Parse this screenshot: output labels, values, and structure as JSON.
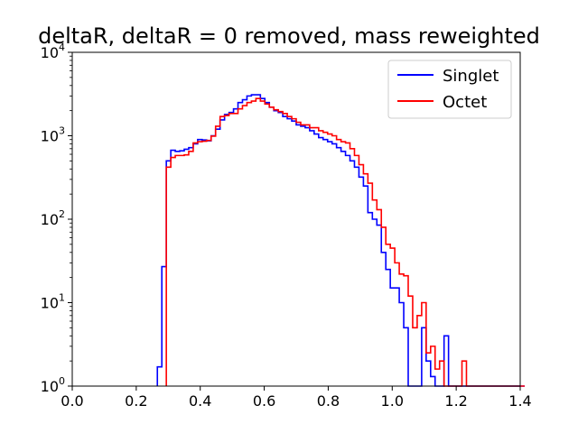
{
  "chart_data": {
    "type": "line",
    "title": "deltaR, deltaR = 0 removed, mass reweighted",
    "xlabel": "",
    "ylabel": "",
    "xlim": [
      0.0,
      1.4
    ],
    "ylim": [
      1,
      10000
    ],
    "yscale": "log",
    "grid": false,
    "legend_position": "top-right",
    "x_ticks": [
      "0.0",
      "0.2",
      "0.4",
      "0.6",
      "0.8",
      "1.0",
      "1.2",
      "1.4"
    ],
    "x_tick_values": [
      0.0,
      0.2,
      0.4,
      0.6,
      0.8,
      1.0,
      1.2,
      1.4
    ],
    "y_ticks": [
      {
        "value": 1,
        "base": "10",
        "exp": "0"
      },
      {
        "value": 10,
        "base": "10",
        "exp": "1"
      },
      {
        "value": 100,
        "base": "10",
        "exp": "2"
      },
      {
        "value": 1000,
        "base": "10",
        "exp": "3"
      },
      {
        "value": 10000,
        "base": "10",
        "exp": "4"
      }
    ],
    "bin_edges_start": 0.266,
    "bin_width": 0.014,
    "series": [
      {
        "name": "Singlet",
        "color": "#0000ff",
        "values": [
          1.7,
          27,
          500,
          670,
          650,
          660,
          690,
          720,
          800,
          900,
          890,
          870,
          1000,
          1200,
          1550,
          1800,
          1900,
          2100,
          2500,
          2700,
          3000,
          3100,
          3100,
          2800,
          2500,
          2200,
          2000,
          1900,
          1700,
          1600,
          1500,
          1350,
          1300,
          1250,
          1150,
          1050,
          950,
          900,
          850,
          800,
          720,
          650,
          580,
          500,
          420,
          320,
          250,
          120,
          100,
          85,
          40,
          25,
          15,
          15,
          10,
          5,
          0,
          0,
          0,
          5,
          2,
          1.3,
          0,
          0,
          4,
          1,
          0,
          0,
          0,
          0,
          0,
          0,
          0,
          0,
          0,
          0,
          0,
          0,
          0,
          0,
          0,
          0
        ]
      },
      {
        "name": "Octet",
        "color": "#ff0000",
        "values": [
          0,
          0,
          420,
          550,
          580,
          580,
          590,
          650,
          820,
          850,
          860,
          880,
          990,
          1300,
          1700,
          1750,
          1850,
          1850,
          2100,
          2300,
          2500,
          2600,
          2800,
          2600,
          2400,
          2200,
          2050,
          1950,
          1850,
          1700,
          1600,
          1450,
          1350,
          1350,
          1250,
          1250,
          1150,
          1100,
          1050,
          1000,
          900,
          850,
          820,
          700,
          580,
          450,
          350,
          270,
          170,
          130,
          80,
          50,
          45,
          30,
          22,
          21,
          12,
          5,
          7,
          10,
          2.5,
          3,
          1.6,
          2,
          1,
          0,
          0,
          0,
          2,
          0,
          0,
          0,
          0,
          0,
          0,
          0,
          0,
          0,
          0,
          0,
          0,
          0
        ]
      }
    ]
  }
}
